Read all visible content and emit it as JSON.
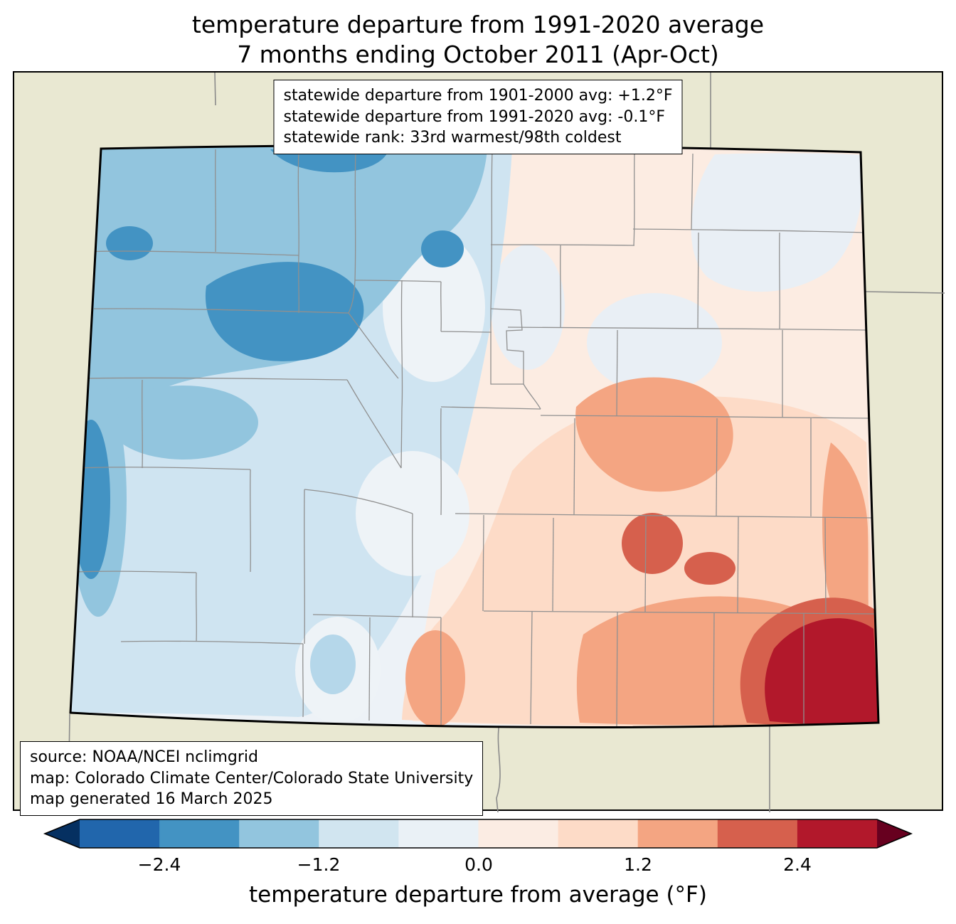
{
  "title": {
    "line1": "temperature departure from 1991-2020 average",
    "line2": "7 months ending October 2011 (Apr-Oct)"
  },
  "stats_box": {
    "line1": "statewide departure from 1901-2000 avg: +1.2°F",
    "line2": "statewide departure from 1991-2020 avg: -0.1°F",
    "line3": "statewide rank: 33rd warmest/98th coldest"
  },
  "source_box": {
    "line1": "source: NOAA/NCEI nclimgrid",
    "line2": "map: Colorado Climate Center/Colorado State University",
    "line3": "map generated 16 March 2025"
  },
  "colorbar": {
    "label": "temperature departure from average (°F)",
    "ticks": [
      "−2.4",
      "−1.2",
      "0.0",
      "1.2",
      "2.4"
    ],
    "tick_values": [
      -2.4,
      -1.2,
      0.0,
      1.2,
      2.4
    ],
    "range": [
      -3.0,
      3.0
    ],
    "interval": 0.6,
    "segment_colors": [
      "#2166ac",
      "#4393c3",
      "#92c5de",
      "#d1e5f0",
      "#eaf1f6",
      "#fbece3",
      "#fddbc7",
      "#f4a582",
      "#d6604d",
      "#b2182b"
    ],
    "under_color": "#053061",
    "over_color": "#67001f"
  },
  "map": {
    "region": "Colorado",
    "background_color": "#e9e8d2",
    "state_outline_color": "#000000",
    "county_line_color": "#909090"
  },
  "chart_data": {
    "type": "heatmap",
    "subtype": "choropleth_contour_map",
    "title": "temperature departure from 1991-2020 average",
    "subtitle": "7 months ending October 2011 (Apr-Oct)",
    "region": "Colorado, USA (county boundaries shown; neighboring states in beige)",
    "variable": "temperature departure from average (°F)",
    "colorbar": {
      "orientation": "horizontal",
      "tick_labels": [
        "−2.4",
        "−1.2",
        "0.0",
        "1.2",
        "2.4"
      ],
      "tick_values": [
        -2.4,
        -1.2,
        0.0,
        1.2,
        2.4
      ],
      "bin_edges": [
        -3.0,
        -2.4,
        -1.8,
        -1.2,
        -0.6,
        0.0,
        0.6,
        1.2,
        1.8,
        2.4,
        3.0
      ],
      "extend": "both",
      "colors": [
        "#2166ac",
        "#4393c3",
        "#92c5de",
        "#d1e5f0",
        "#eaf1f6",
        "#fbece3",
        "#fddbc7",
        "#f4a582",
        "#d6604d",
        "#b2182b"
      ]
    },
    "statistics": {
      "statewide_departure_from_1901_2000_avg_F": "+1.2",
      "statewide_departure_from_1991_2020_avg_F": "-0.1",
      "statewide_rank": "33rd warmest/98th coldest"
    },
    "spatial_pattern": [
      {
        "area": "northwest Colorado",
        "departure_F": -1.8
      },
      {
        "area": "west edge (Utah border strip)",
        "departure_F": -2.1
      },
      {
        "area": "north-central mountains",
        "departure_F": -1.2
      },
      {
        "area": "central Colorado",
        "departure_F": -0.3
      },
      {
        "area": "northeast corner",
        "departure_F": -0.2
      },
      {
        "area": "east-central plains",
        "departure_F": 0.9
      },
      {
        "area": "southeast plains",
        "departure_F": 1.5
      },
      {
        "area": "far southeast corner",
        "departure_F": 2.7
      }
    ],
    "source": "NOAA/NCEI nclimgrid",
    "credit": "Colorado Climate Center/Colorado State University",
    "generated": "16 March 2025"
  }
}
